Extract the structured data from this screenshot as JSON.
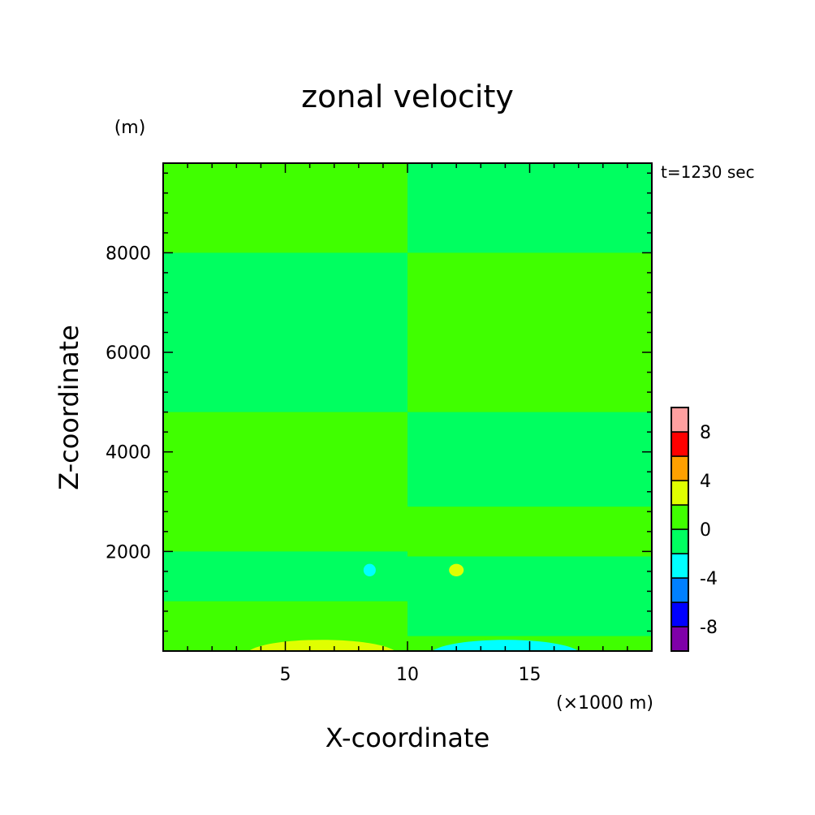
{
  "chart_data": {
    "type": "heatmap",
    "title": "zonal velocity",
    "time_label": "t=1230 sec",
    "xlabel": "X-coordinate",
    "ylabel": "Z-coordinate",
    "x_unit": "(×1000 m)",
    "y_unit": "(m)",
    "xlim": [
      0,
      20
    ],
    "ylim": [
      0,
      9800
    ],
    "x_ticks": [
      5,
      10,
      15
    ],
    "y_ticks": [
      2000,
      4000,
      6000,
      8000
    ],
    "x_tick_labels": [
      "5",
      "10",
      "15"
    ],
    "y_tick_labels": [
      "2000",
      "4000",
      "6000",
      "8000"
    ],
    "colorbar": {
      "bounds": [
        -10,
        -8,
        -6,
        -4,
        -2,
        0,
        2,
        4,
        6,
        8,
        10
      ],
      "colors": [
        "#7f00a8",
        "#0000ff",
        "#0080ff",
        "#00ffff",
        "#00ff60",
        "#40ff00",
        "#e0ff00",
        "#ffa000",
        "#ff0000",
        "#ffa0a0"
      ],
      "tick_labels": [
        "-8",
        "-4",
        "0",
        "4",
        "8"
      ],
      "tick_values": [
        -8,
        -4,
        0,
        4,
        8
      ]
    },
    "regions": [
      {
        "value": 1,
        "x_range": [
          0,
          20
        ],
        "z_range": [
          0,
          9800
        ]
      },
      {
        "value": -1,
        "x_range": [
          10,
          20
        ],
        "z_range": [
          8000,
          9800
        ]
      },
      {
        "value": -1,
        "x_range": [
          0,
          10
        ],
        "z_range": [
          4800,
          8000
        ]
      },
      {
        "value": -1,
        "x_range": [
          10,
          20
        ],
        "z_range": [
          2900,
          4800
        ]
      },
      {
        "value": -1,
        "x_range": [
          0,
          10
        ],
        "z_range": [
          1000,
          2000
        ]
      },
      {
        "value": -1,
        "x_range": [
          10,
          20
        ],
        "z_range": [
          300,
          1900
        ]
      },
      {
        "value": 3,
        "x_range": [
          3.5,
          9.5
        ],
        "z_range": [
          0,
          300
        ]
      },
      {
        "value": -3,
        "x_range": [
          11,
          17
        ],
        "z_range": [
          0,
          300
        ]
      },
      {
        "value": -3,
        "x_range": [
          8.2,
          8.7
        ],
        "z_range": [
          1500,
          1750
        ]
      },
      {
        "value": 3,
        "x_range": [
          11.7,
          12.3
        ],
        "z_range": [
          1500,
          1750
        ]
      }
    ]
  }
}
